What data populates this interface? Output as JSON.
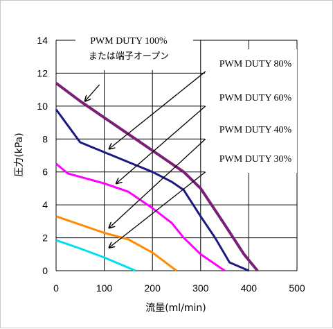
{
  "chart_data": {
    "type": "line",
    "xlabel": "流量(ml/min)",
    "ylabel": "圧力(kPa)",
    "xlim": [
      0,
      500
    ],
    "ylim": [
      0,
      14
    ],
    "xticks": [
      "0",
      "100",
      "200",
      "300",
      "400",
      "500"
    ],
    "yticks": [
      "0",
      "2",
      "4",
      "6",
      "8",
      "10",
      "12",
      "14"
    ],
    "grid": true,
    "series": [
      {
        "label_lines": [
          "PWM DUTY 100%",
          "または端子オープン"
        ],
        "color": "#7a1f78",
        "points": [
          [
            0,
            11.4
          ],
          [
            50,
            10.3
          ],
          [
            100,
            9.3
          ],
          [
            150,
            8.3
          ],
          [
            200,
            7.3
          ],
          [
            240,
            6.5
          ],
          [
            265,
            6.0
          ],
          [
            300,
            5.0
          ],
          [
            350,
            2.8
          ],
          [
            390,
            1.0
          ],
          [
            418,
            0
          ]
        ]
      },
      {
        "label_lines": [
          "PWM DUTY 80%"
        ],
        "color": "#1a1a80",
        "points": [
          [
            0,
            9.8
          ],
          [
            25,
            8.8
          ],
          [
            50,
            7.8
          ],
          [
            100,
            7.2
          ],
          [
            150,
            6.6
          ],
          [
            200,
            6.0
          ],
          [
            240,
            5.4
          ],
          [
            265,
            4.9
          ],
          [
            300,
            3.3
          ],
          [
            330,
            2.0
          ],
          [
            360,
            0.5
          ],
          [
            400,
            0
          ]
        ]
      },
      {
        "label_lines": [
          "PWM DUTY 60%"
        ],
        "color": "#ff00ff",
        "points": [
          [
            0,
            6.5
          ],
          [
            25,
            5.9
          ],
          [
            50,
            5.7
          ],
          [
            100,
            5.3
          ],
          [
            150,
            4.8
          ],
          [
            200,
            3.8
          ],
          [
            240,
            2.9
          ],
          [
            265,
            2.0
          ],
          [
            300,
            1.0
          ],
          [
            350,
            0
          ]
        ]
      },
      {
        "label_lines": [
          "PWM DUTY 40%"
        ],
        "color": "#ff8c00",
        "points": [
          [
            0,
            3.3
          ],
          [
            50,
            2.8
          ],
          [
            100,
            2.3
          ],
          [
            150,
            1.9
          ],
          [
            200,
            1.1
          ],
          [
            250,
            0
          ]
        ]
      },
      {
        "label_lines": [
          "PWM DUTY 30%"
        ],
        "color": "#00e0f0",
        "points": [
          [
            0,
            1.85
          ],
          [
            50,
            1.35
          ],
          [
            100,
            0.8
          ],
          [
            165,
            0
          ]
        ]
      }
    ],
    "arrows": [
      {
        "from": [
          90,
          11.3
        ],
        "to": [
          60,
          10.3
        ]
      },
      {
        "from": [
          310,
          12.1
        ],
        "to": [
          110,
          7.4
        ]
      },
      {
        "from": [
          310,
          10.0
        ],
        "to": [
          125,
          5.3
        ]
      },
      {
        "from": [
          310,
          8.0
        ],
        "to": [
          110,
          2.6
        ]
      },
      {
        "from": [
          310,
          6.0
        ],
        "to": [
          110,
          1.4
        ]
      }
    ]
  }
}
